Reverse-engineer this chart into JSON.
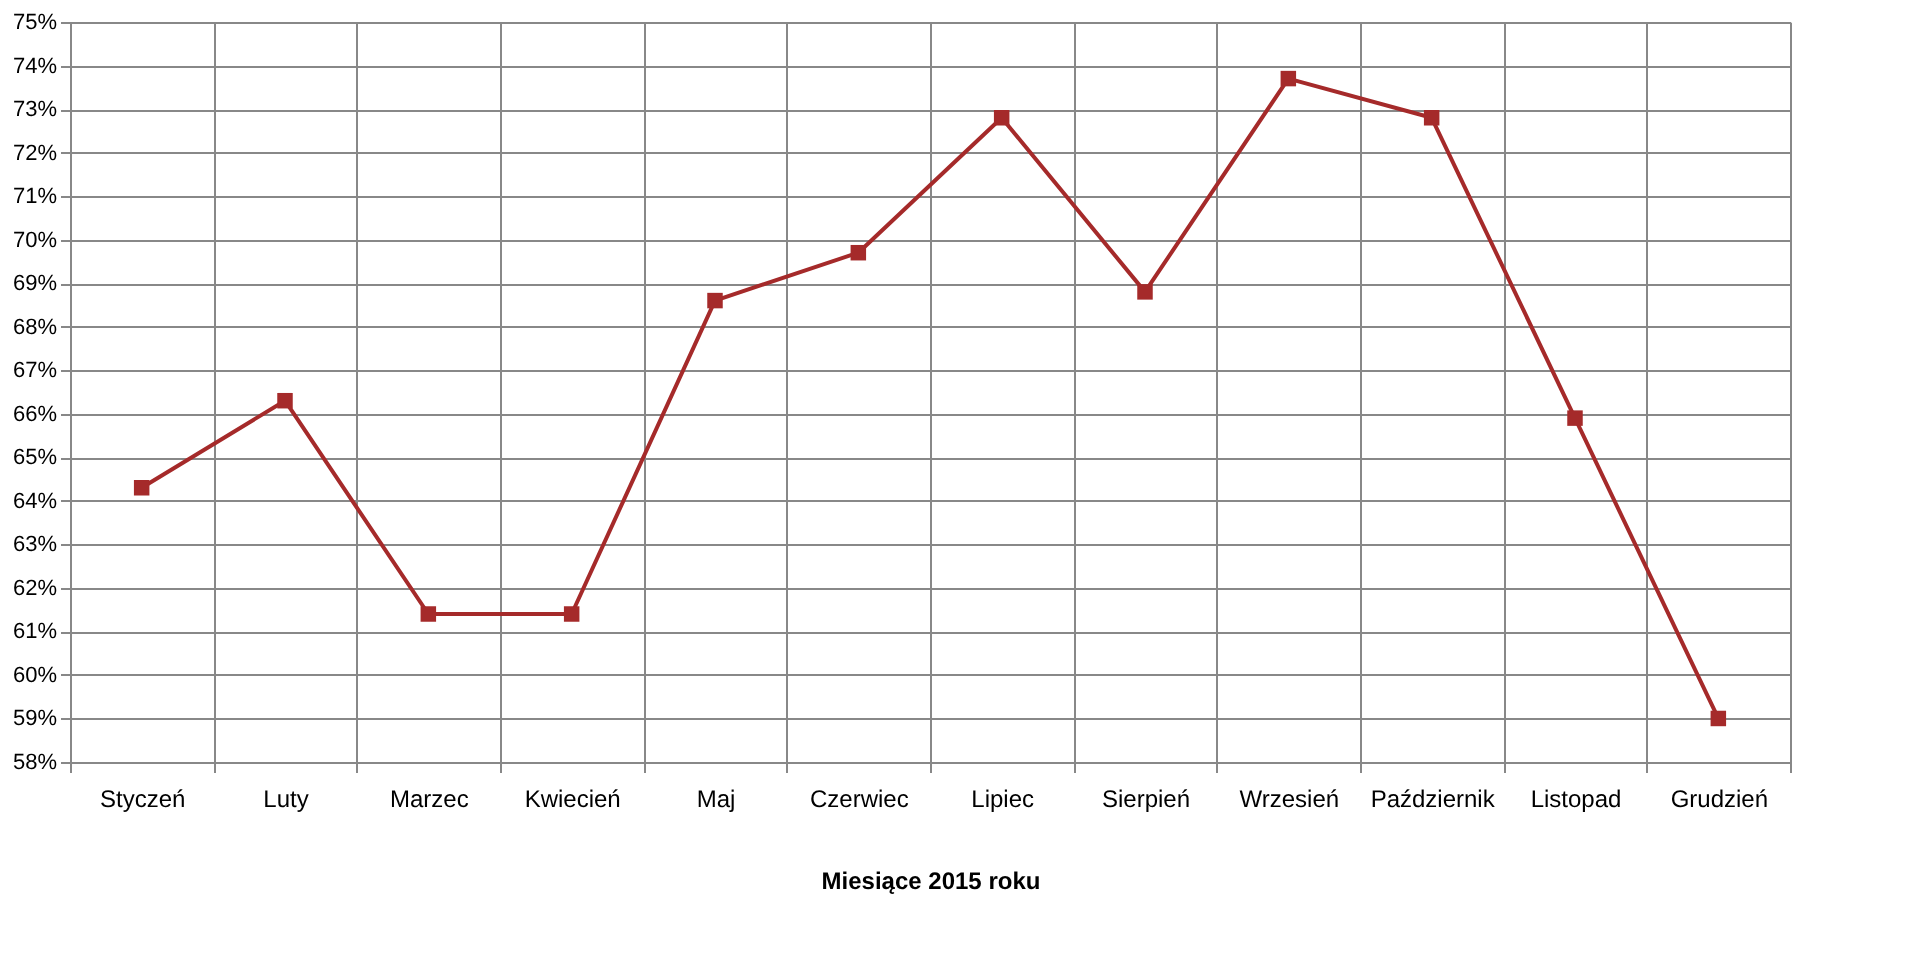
{
  "chart_data": {
    "type": "line",
    "xlabel": "Miesiące 2015  roku",
    "categories": [
      "Styczeń",
      "Luty",
      "Marzec",
      "Kwiecień",
      "Maj",
      "Czerwiec",
      "Lipiec",
      "Sierpień",
      "Wrzesień",
      "Październik",
      "Listopad",
      "Grudzień"
    ],
    "series": [
      {
        "color": "#a52a2a",
        "values": [
          64.3,
          66.3,
          61.4,
          61.4,
          68.6,
          69.7,
          72.8,
          68.8,
          73.7,
          72.8,
          65.9,
          59.0
        ]
      }
    ],
    "ylim": [
      58,
      75
    ],
    "yticks": [
      {
        "value": 58,
        "label": "58%"
      },
      {
        "value": 59,
        "label": "59%"
      },
      {
        "value": 60,
        "label": "60%"
      },
      {
        "value": 61,
        "label": "61%"
      },
      {
        "value": 62,
        "label": "62%"
      },
      {
        "value": 63,
        "label": "63%"
      },
      {
        "value": 64,
        "label": "64%"
      },
      {
        "value": 65,
        "label": "65%"
      },
      {
        "value": 66,
        "label": "66%"
      },
      {
        "value": 67,
        "label": "67%"
      },
      {
        "value": 68,
        "label": "68%"
      },
      {
        "value": 69,
        "label": "69%"
      },
      {
        "value": 70,
        "label": "70%"
      },
      {
        "value": 71,
        "label": "71%"
      },
      {
        "value": 72,
        "label": "72%"
      },
      {
        "value": 73,
        "label": "73%"
      },
      {
        "value": 74,
        "label": "74%"
      },
      {
        "value": 75,
        "label": "75%"
      }
    ],
    "grid": true,
    "marker": "square",
    "line_style": "solid"
  }
}
